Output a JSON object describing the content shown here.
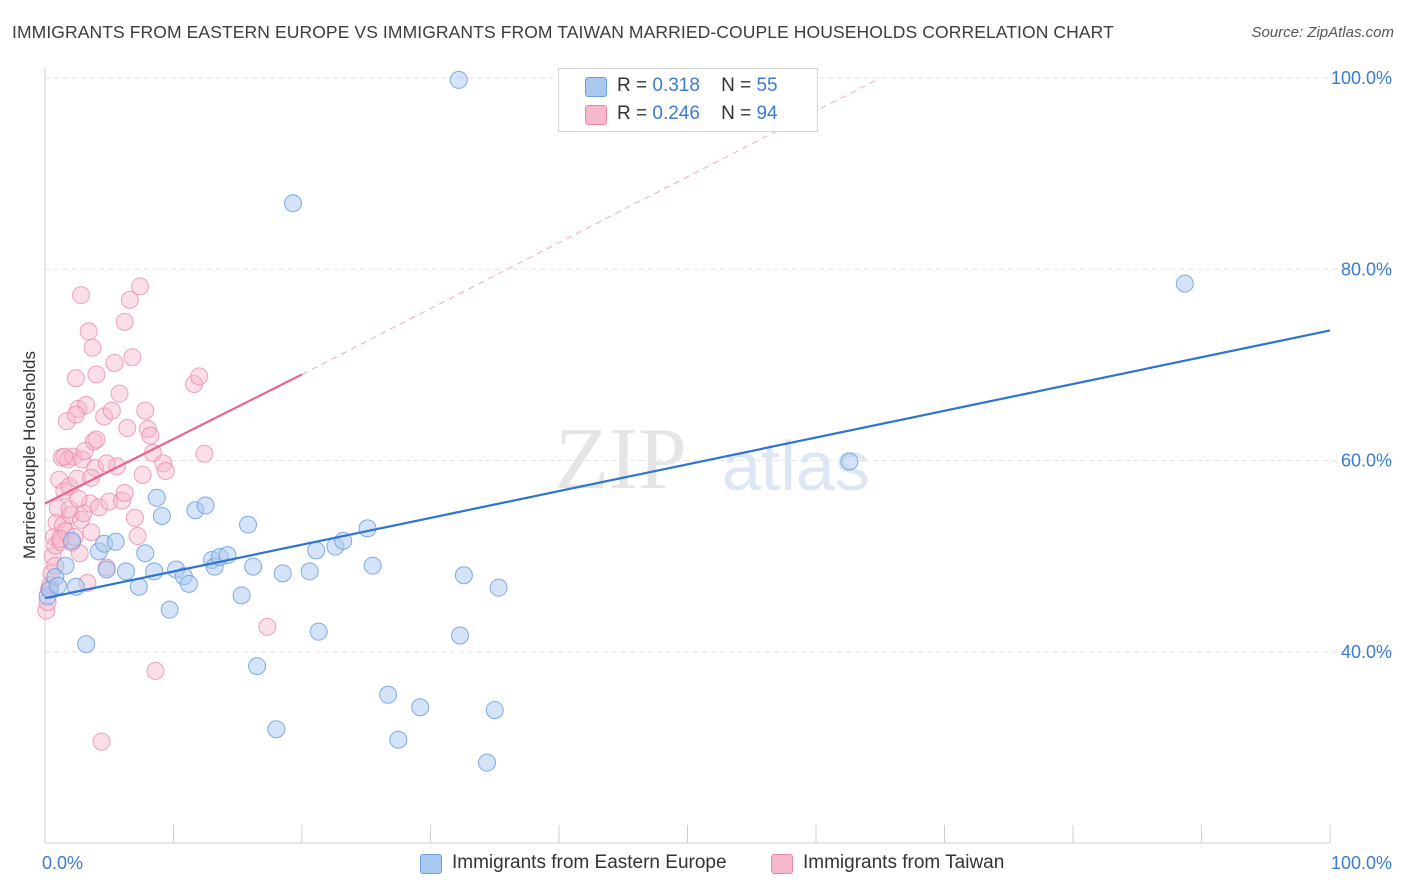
{
  "title": "IMMIGRANTS FROM EASTERN EUROPE VS IMMIGRANTS FROM TAIWAN MARRIED-COUPLE HOUSEHOLDS CORRELATION CHART",
  "source": "Source: ZipAtlas.com",
  "watermark": {
    "zip": "ZIP",
    "atlas": "atlas"
  },
  "legend": {
    "r_label": "R =",
    "n_label": "N =",
    "series": [
      {
        "name": "Immigrants from Eastern Europe",
        "r": "0.318",
        "n": "55"
      },
      {
        "name": "Immigrants from Taiwan",
        "r": "0.246",
        "n": "94"
      }
    ]
  },
  "colors": {
    "blue_fill": "#a9c8f0",
    "blue_stroke": "#6a9fe0",
    "blue_line": "#2f74d0",
    "pink_fill": "#f6b8cb",
    "pink_stroke": "#e986a6",
    "pink_line": "#e8648e",
    "axis_text": "#3a7bd5"
  },
  "chart_data": {
    "type": "scatter",
    "title": "IMMIGRANTS FROM EASTERN EUROPE VS IMMIGRANTS FROM TAIWAN MARRIED-COUPLE HOUSEHOLDS CORRELATION CHART",
    "xlabel": "",
    "ylabel": "Married-couple Households",
    "xlim": [
      0,
      100
    ],
    "ylim": [
      20,
      100
    ],
    "x_tick_labels": [
      "0.0%",
      "100.0%"
    ],
    "y_tick_labels": [
      "40.0%",
      "60.0%",
      "80.0%",
      "100.0%"
    ],
    "y_ticks": [
      40,
      60,
      80,
      100
    ],
    "series": [
      {
        "name": "Immigrants from Eastern Europe",
        "color": "blue",
        "trend": {
          "x0": 0,
          "y0": 45.6,
          "x1": 100,
          "y1": 73.6
        },
        "points": [
          [
            0.2,
            45.8
          ],
          [
            0.4,
            46.5
          ],
          [
            0.8,
            47.8
          ],
          [
            1.0,
            46.9
          ],
          [
            1.6,
            49.0
          ],
          [
            2.1,
            51.6
          ],
          [
            2.4,
            46.8
          ],
          [
            3.2,
            40.8
          ],
          [
            4.2,
            50.5
          ],
          [
            4.6,
            51.3
          ],
          [
            4.8,
            48.6
          ],
          [
            5.5,
            51.5
          ],
          [
            6.3,
            48.4
          ],
          [
            7.3,
            46.8
          ],
          [
            7.8,
            50.3
          ],
          [
            8.5,
            48.4
          ],
          [
            8.7,
            56.1
          ],
          [
            9.1,
            54.2
          ],
          [
            9.7,
            44.4
          ],
          [
            10.2,
            48.6
          ],
          [
            10.8,
            47.9
          ],
          [
            11.2,
            47.1
          ],
          [
            11.7,
            54.8
          ],
          [
            12.5,
            55.3
          ],
          [
            13.0,
            49.6
          ],
          [
            13.2,
            48.9
          ],
          [
            13.6,
            49.9
          ],
          [
            14.2,
            50.1
          ],
          [
            15.3,
            45.9
          ],
          [
            15.8,
            53.3
          ],
          [
            16.2,
            48.9
          ],
          [
            16.5,
            38.5
          ],
          [
            18.0,
            31.9
          ],
          [
            18.5,
            48.2
          ],
          [
            19.3,
            86.9
          ],
          [
            20.6,
            48.4
          ],
          [
            21.1,
            50.6
          ],
          [
            21.3,
            42.1
          ],
          [
            22.6,
            51.0
          ],
          [
            23.2,
            51.6
          ],
          [
            25.1,
            52.9
          ],
          [
            25.5,
            49.0
          ],
          [
            26.7,
            35.5
          ],
          [
            27.5,
            30.8
          ],
          [
            29.2,
            34.2
          ],
          [
            32.2,
            99.8
          ],
          [
            32.3,
            41.7
          ],
          [
            32.6,
            48.0
          ],
          [
            34.4,
            28.4
          ],
          [
            35.0,
            33.9
          ],
          [
            35.3,
            46.7
          ],
          [
            62.6,
            59.9
          ],
          [
            88.7,
            78.5
          ]
        ]
      },
      {
        "name": "Immigrants from Taiwan",
        "color": "pink",
        "trend": {
          "x0": 0,
          "y0": 55.5,
          "x1": 20,
          "y1": 69.0
        },
        "trend_extension": {
          "x0": 20,
          "y0": 69.0,
          "x1": 65,
          "y1": 100
        },
        "points": [
          [
            0.1,
            44.3
          ],
          [
            0.2,
            45.2
          ],
          [
            0.3,
            46.5
          ],
          [
            0.4,
            47.0
          ],
          [
            0.5,
            48.2
          ],
          [
            0.6,
            50.0
          ],
          [
            0.7,
            52.0
          ],
          [
            0.8,
            51.1
          ],
          [
            0.9,
            53.5
          ],
          [
            1.0,
            55.0
          ],
          [
            1.1,
            58.0
          ],
          [
            1.2,
            51.5
          ],
          [
            1.3,
            60.3
          ],
          [
            1.4,
            53.2
          ],
          [
            1.5,
            56.8
          ],
          [
            1.6,
            52.6
          ],
          [
            1.7,
            64.1
          ],
          [
            1.8,
            60.1
          ],
          [
            1.9,
            57.3
          ],
          [
            2.0,
            54.3
          ],
          [
            2.1,
            51.4
          ],
          [
            2.2,
            60.4
          ],
          [
            2.3,
            52.0
          ],
          [
            2.4,
            68.6
          ],
          [
            2.5,
            58.1
          ],
          [
            2.6,
            65.4
          ],
          [
            2.7,
            50.3
          ],
          [
            2.8,
            53.8
          ],
          [
            2.9,
            60.1
          ],
          [
            3.0,
            54.5
          ],
          [
            3.1,
            61.0
          ],
          [
            3.2,
            65.8
          ],
          [
            3.3,
            47.2
          ],
          [
            3.4,
            73.5
          ],
          [
            3.5,
            55.5
          ],
          [
            3.6,
            52.5
          ],
          [
            3.7,
            71.8
          ],
          [
            3.8,
            62.0
          ],
          [
            3.9,
            59.2
          ],
          [
            4.0,
            69.0
          ],
          [
            4.2,
            55.1
          ],
          [
            4.4,
            30.6
          ],
          [
            4.6,
            64.6
          ],
          [
            4.8,
            48.8
          ],
          [
            5.0,
            55.7
          ],
          [
            5.2,
            65.2
          ],
          [
            5.4,
            70.2
          ],
          [
            5.6,
            59.4
          ],
          [
            5.8,
            67.0
          ],
          [
            6.0,
            55.8
          ],
          [
            6.2,
            56.6
          ],
          [
            6.4,
            63.4
          ],
          [
            6.6,
            76.8
          ],
          [
            6.8,
            70.8
          ],
          [
            7.0,
            54.0
          ],
          [
            7.2,
            52.1
          ],
          [
            7.4,
            78.2
          ],
          [
            7.6,
            58.5
          ],
          [
            7.8,
            65.2
          ],
          [
            8.0,
            63.3
          ],
          [
            8.2,
            62.6
          ],
          [
            8.4,
            60.8
          ],
          [
            8.6,
            38.0
          ],
          [
            9.2,
            59.7
          ],
          [
            9.4,
            58.9
          ],
          [
            11.6,
            68.0
          ],
          [
            12.0,
            68.8
          ],
          [
            12.4,
            60.7
          ],
          [
            17.3,
            42.6
          ],
          [
            2.8,
            77.3
          ],
          [
            6.2,
            74.5
          ],
          [
            1.5,
            60.4
          ],
          [
            0.8,
            49.0
          ],
          [
            2.4,
            64.8
          ],
          [
            4.8,
            59.7
          ],
          [
            3.6,
            58.2
          ],
          [
            1.9,
            54.9
          ],
          [
            1.2,
            51.8
          ],
          [
            2.6,
            56.0
          ],
          [
            4.0,
            62.2
          ]
        ]
      }
    ]
  }
}
